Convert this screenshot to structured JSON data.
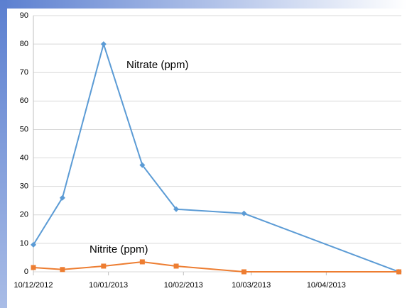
{
  "chart_data": {
    "type": "line",
    "x": [
      "2012-12-10",
      "2012-12-22",
      "2013-01-08",
      "2013-01-24",
      "2013-02-07",
      "2013-03-07",
      "2013-05-10"
    ],
    "series": [
      {
        "name": "Nitrate (ppm)",
        "color": "#5b9bd5",
        "marker": "diamond",
        "values": [
          9.5,
          26,
          80,
          37.5,
          22,
          20.5,
          0
        ]
      },
      {
        "name": "Nitrite (ppm)",
        "color": "#ed7d31",
        "marker": "square",
        "values": [
          1.5,
          0.8,
          2,
          3.5,
          2,
          0,
          0
        ]
      }
    ],
    "xlim": [
      "2012-12-10",
      "2013-05-11"
    ],
    "xticks": [
      {
        "value": "2012-12-10",
        "label": "10/12/2012"
      },
      {
        "value": "2013-01-10",
        "label": "10/01/2013"
      },
      {
        "value": "2013-02-10",
        "label": "10/02/2013"
      },
      {
        "value": "2013-03-10",
        "label": "10/03/2013"
      },
      {
        "value": "2013-04-10",
        "label": "10/04/2013"
      }
    ],
    "ylim": [
      0,
      90
    ],
    "yticks": [
      0,
      10,
      20,
      30,
      40,
      50,
      60,
      70,
      80,
      90
    ],
    "grid": true
  }
}
